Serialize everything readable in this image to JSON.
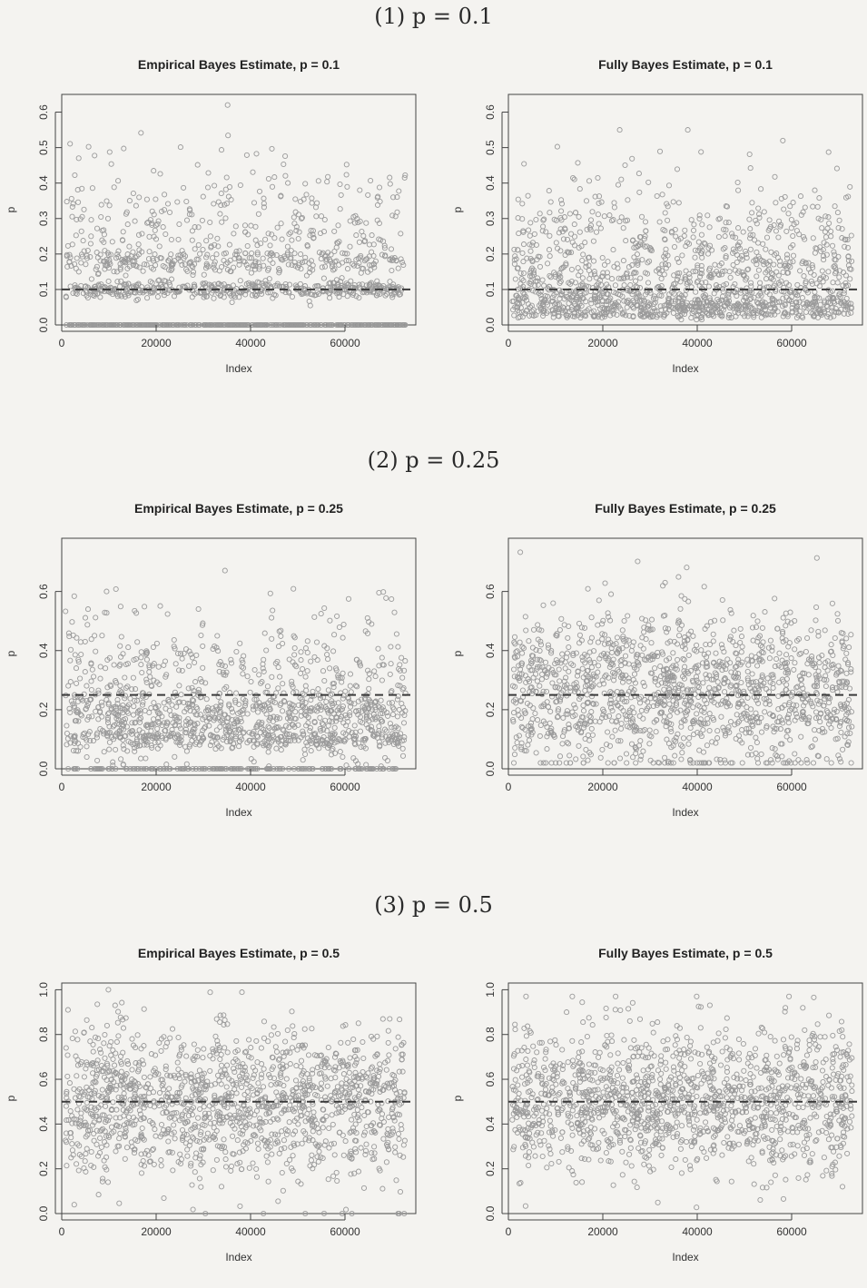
{
  "sections": [
    {
      "label": "(1) p = 0.1"
    },
    {
      "label": "(2) p = 0.25"
    },
    {
      "label": "(3) p = 0.5"
    }
  ],
  "colors": {
    "points": "#9a9a9a",
    "reference_line": "#3a3a3a",
    "background": "#f4f3f0"
  },
  "chart_data": [
    {
      "type": "scatter",
      "title": "Empirical Bayes Estimate, p = 0.1",
      "xlabel": "Index",
      "ylabel": "p",
      "xlim": [
        0,
        75000
      ],
      "ylim": [
        0,
        0.65
      ],
      "xticks": [
        0,
        20000,
        40000,
        60000
      ],
      "yticks": [
        0.0,
        0.1,
        0.2,
        0.3,
        0.4,
        0.5,
        0.6
      ],
      "reference_line": 0.1,
      "points_summary": {
        "count": "about 1500",
        "clusters": [
          0.0,
          0.1,
          0.18
        ],
        "max": 0.62,
        "note": "many points at exactly 0"
      }
    },
    {
      "type": "scatter",
      "title": "Fully Bayes Estimate, p = 0.1",
      "xlabel": "Index",
      "ylabel": "p",
      "xlim": [
        0,
        75000
      ],
      "ylim": [
        0,
        0.65
      ],
      "xticks": [
        0,
        20000,
        40000,
        60000
      ],
      "yticks": [
        0.0,
        0.1,
        0.2,
        0.3,
        0.4,
        0.5,
        0.6
      ],
      "reference_line": 0.1,
      "points_summary": {
        "count": "about 1500",
        "range": [
          0.02,
          0.55
        ],
        "note": "no points at exactly 0"
      }
    },
    {
      "type": "scatter",
      "title": "Empirical Bayes Estimate, p = 0.25",
      "xlabel": "Index",
      "ylabel": "p",
      "xlim": [
        0,
        75000
      ],
      "ylim": [
        0,
        0.78
      ],
      "xticks": [
        0,
        20000,
        40000,
        60000
      ],
      "yticks": [
        0.0,
        0.2,
        0.4,
        0.6
      ],
      "reference_line": 0.25,
      "points_summary": {
        "count": "about 1500",
        "clusters": [
          0.0,
          0.1,
          0.25
        ],
        "max": 0.75
      }
    },
    {
      "type": "scatter",
      "title": "Fully Bayes Estimate, p = 0.25",
      "xlabel": "Index",
      "ylabel": "p",
      "xlim": [
        0,
        75000
      ],
      "ylim": [
        0,
        0.78
      ],
      "xticks": [
        0,
        20000,
        40000,
        60000
      ],
      "yticks": [
        0.0,
        0.2,
        0.4,
        0.6
      ],
      "reference_line": 0.25,
      "points_summary": {
        "count": "about 1500",
        "range": [
          0.02,
          0.75
        ]
      }
    },
    {
      "type": "scatter",
      "title": "Empirical Bayes Estimate, p = 0.5",
      "xlabel": "Index",
      "ylabel": "p",
      "xlim": [
        0,
        75000
      ],
      "ylim": [
        0,
        1.03
      ],
      "xticks": [
        0,
        20000,
        40000,
        60000
      ],
      "yticks": [
        0.0,
        0.2,
        0.4,
        0.6,
        0.8,
        1.0
      ],
      "reference_line": 0.5,
      "points_summary": {
        "count": "about 1500",
        "range": [
          0.0,
          1.0
        ],
        "center": 0.5
      }
    },
    {
      "type": "scatter",
      "title": "Fully Bayes Estimate, p = 0.5",
      "xlabel": "Index",
      "ylabel": "p",
      "xlim": [
        0,
        75000
      ],
      "ylim": [
        0,
        1.03
      ],
      "xticks": [
        0,
        20000,
        40000,
        60000
      ],
      "yticks": [
        0.0,
        0.2,
        0.4,
        0.6,
        0.8,
        1.0
      ],
      "reference_line": 0.5,
      "points_summary": {
        "count": "about 1500",
        "range": [
          0.02,
          0.97
        ],
        "center": 0.5
      }
    }
  ]
}
